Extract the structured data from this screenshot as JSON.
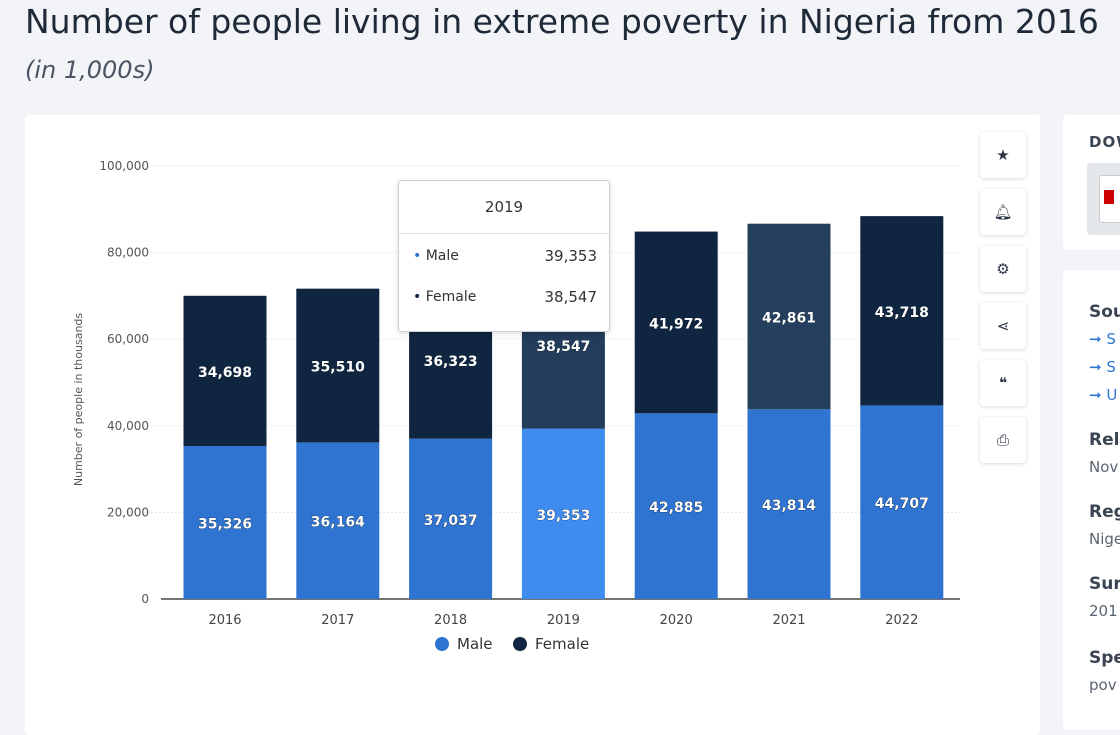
{
  "header": {
    "title": "Number of people living in extreme poverty in Nigeria from 2016",
    "subtitle": "(in 1,000s)"
  },
  "toolbar": [
    {
      "name": "star-icon",
      "glyph": "★"
    },
    {
      "name": "bell-icon",
      "glyph": "🔔︎"
    },
    {
      "name": "gear-icon",
      "glyph": "⚙"
    },
    {
      "name": "share-icon",
      "glyph": "⋖"
    },
    {
      "name": "quote-icon",
      "glyph": "❝"
    },
    {
      "name": "print-icon",
      "glyph": "⎙"
    }
  ],
  "side_panel": {
    "download": "DOW",
    "source_heading": "Sou",
    "sources": [
      "S",
      "S",
      "U"
    ],
    "release_heading": "Rel",
    "release_value": "Nov",
    "region_heading": "Reg",
    "region_value": "Nige",
    "survey_heading": "Sur",
    "survey_value": "201",
    "special_heading": "Spe",
    "special_value": "pov"
  },
  "tooltip": {
    "title": "2019",
    "rows": [
      {
        "label": "Male",
        "value": "39,353"
      },
      {
        "label": "Female",
        "value": "38,547"
      }
    ]
  },
  "chart_data": {
    "type": "bar",
    "stacked": true,
    "title": "Number of people living in extreme poverty in Nigeria from 2016",
    "ylabel": "Number of people in thousands",
    "xlabel": "",
    "ylim": [
      0,
      100000
    ],
    "yticks": [
      0,
      20000,
      40000,
      60000,
      80000,
      100000
    ],
    "ytick_labels": [
      "0",
      "20,000",
      "40,000",
      "60,000",
      "80,000",
      "100,000"
    ],
    "categories": [
      "2016",
      "2017",
      "2018",
      "2019",
      "2020",
      "2021",
      "2022"
    ],
    "series": [
      {
        "name": "Male",
        "color": "#2f74d0",
        "values": [
          35326,
          36164,
          37037,
          39353,
          42885,
          43814,
          44707
        ],
        "labels": [
          "35,326",
          "36,164",
          "37,037",
          "39,353",
          "42,885",
          "43,814",
          "44,707"
        ]
      },
      {
        "name": "Female",
        "color": "#10253f",
        "values": [
          34698,
          35510,
          36323,
          38547,
          41972,
          42861,
          43718
        ],
        "labels": [
          "34,698",
          "35,510",
          "36,323",
          "38,547",
          "41,972",
          "42,861",
          "43,718"
        ]
      }
    ],
    "highlighted": "2019",
    "legend": "bottom-center",
    "grid": true
  }
}
